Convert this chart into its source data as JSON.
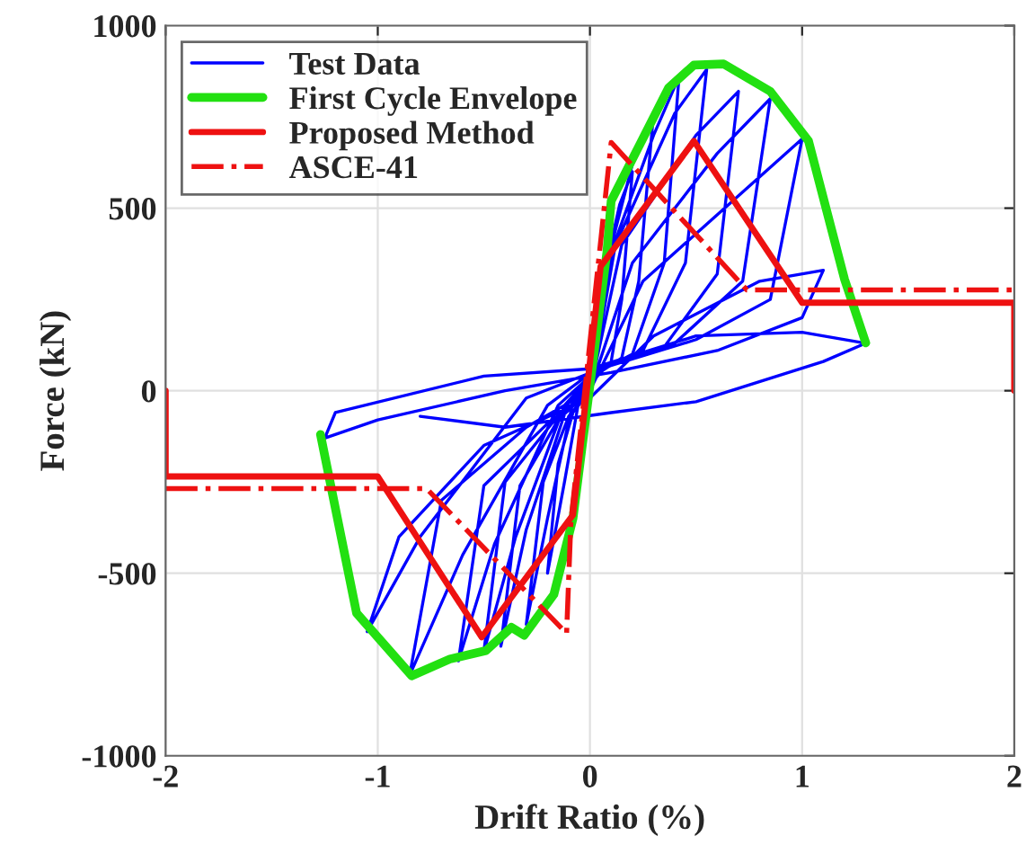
{
  "chart_data": {
    "type": "line",
    "xlabel": "Drift Ratio (%)",
    "ylabel": "Force (kN)",
    "xlim": [
      -2,
      2
    ],
    "xticks": [
      -2,
      -1,
      0,
      1,
      2
    ],
    "ylim": [
      -1000,
      1000
    ],
    "yticks": [
      -1000,
      -500,
      0,
      500,
      1000
    ],
    "grid": true,
    "legend": "top left",
    "marker": "none",
    "series": [
      {
        "name": "Test Data",
        "color": "#0000ff",
        "line_style": "solid",
        "x": [
          0,
          0.06,
          0.14,
          0.2,
          0.15,
          0.1,
          0.02,
          -0.05,
          -0.12,
          -0.2,
          -0.15,
          -0.08,
          0,
          0.08,
          0.2,
          0.3,
          0.23,
          0.15,
          0.02,
          -0.08,
          -0.2,
          -0.3,
          -0.22,
          -0.1,
          0,
          0.1,
          0.3,
          0.42,
          0.35,
          0.2,
          0.02,
          -0.1,
          -0.3,
          -0.42,
          -0.33,
          -0.15,
          0,
          0.12,
          0.4,
          0.55,
          0.45,
          0.25,
          0.02,
          -0.12,
          -0.35,
          -0.5,
          -0.4,
          -0.18,
          0,
          0.15,
          0.5,
          0.7,
          0.6,
          0.35,
          0.03,
          -0.15,
          -0.45,
          -0.62,
          -0.5,
          -0.2,
          0,
          0.2,
          0.6,
          0.85,
          0.72,
          0.4,
          0.03,
          -0.2,
          -0.6,
          -0.85,
          -0.7,
          -0.3,
          0,
          0.25,
          0.75,
          1.0,
          0.85,
          0.5,
          0.05,
          -0.3,
          -0.8,
          -1.05,
          -0.9,
          -0.5,
          0,
          0.3,
          0.8,
          1.1,
          1.0,
          0.6,
          0.1,
          -0.4,
          -1.0,
          -1.25,
          -1.2,
          -0.5,
          0,
          0.5,
          1.0,
          1.3,
          1.1,
          0.5,
          0.1,
          -0.4,
          -0.8
        ],
        "values": [
          0,
          300,
          510,
          600,
          250,
          80,
          30,
          -20,
          -250,
          -500,
          -200,
          -60,
          0,
          350,
          620,
          760,
          300,
          90,
          40,
          -30,
          -350,
          -640,
          -250,
          -70,
          0,
          380,
          700,
          860,
          350,
          100,
          45,
          -30,
          -380,
          -700,
          -260,
          -80,
          0,
          400,
          760,
          880,
          350,
          110,
          50,
          -40,
          -400,
          -715,
          -250,
          -90,
          0,
          400,
          700,
          820,
          320,
          120,
          55,
          -40,
          -420,
          -740,
          -260,
          -90,
          0,
          350,
          650,
          800,
          300,
          130,
          60,
          -40,
          -450,
          -780,
          -300,
          -100,
          0,
          300,
          560,
          690,
          250,
          140,
          60,
          -20,
          -400,
          -660,
          -400,
          -150,
          -20,
          150,
          300,
          330,
          200,
          110,
          50,
          0,
          -80,
          -130,
          -60,
          40,
          60,
          150,
          160,
          130,
          80,
          -30,
          -60,
          -100,
          -70
        ]
      },
      {
        "name": "First Cycle Envelope",
        "color": "#22e011",
        "line_style": "solid",
        "x": [
          -1.27,
          -1.1,
          -0.84,
          -0.66,
          -0.49,
          -0.37,
          -0.31,
          -0.17,
          -0.08,
          0.08,
          0.1,
          0.37,
          0.49,
          0.63,
          0.85,
          1.03,
          1.2,
          1.3
        ],
        "values": [
          -120,
          -609,
          -781,
          -735,
          -712,
          -648,
          -670,
          -558,
          -350,
          380,
          520,
          829,
          892,
          895,
          820,
          684,
          305,
          131
        ]
      },
      {
        "name": "Proposed Method",
        "color": "#ee1111",
        "line_style": "solid",
        "x": [
          -2,
          -2,
          -1,
          -0.51,
          -0.08,
          0.05,
          0.49,
          1.0,
          2,
          2
        ],
        "values": [
          0,
          -235,
          -235,
          -675,
          -340,
          340,
          684,
          241,
          241,
          0
        ]
      },
      {
        "name": "ASCE-41",
        "color": "#ee1111",
        "line_style": "dashdot",
        "x": [
          -2,
          -0.77,
          -0.11,
          -0.09,
          0.1,
          0.74,
          2
        ],
        "values": [
          -268,
          -268,
          -665,
          -360,
          680,
          276,
          276
        ]
      }
    ]
  }
}
